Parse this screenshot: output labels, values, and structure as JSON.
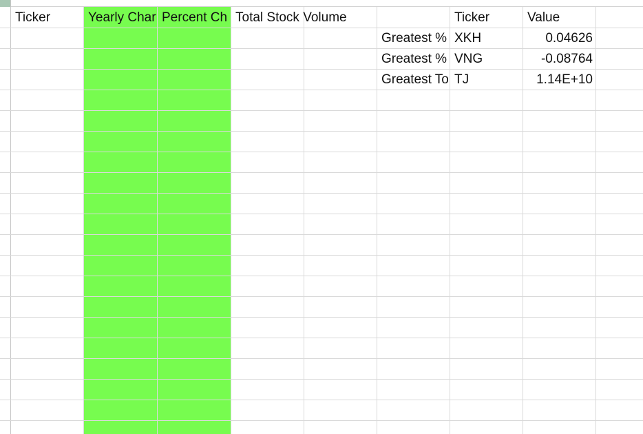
{
  "sheet": {
    "headers": {
      "ticker": "Ticker",
      "yearly_change": "Yearly Char",
      "percent_change": "Percent Ch",
      "total_stock_volume": "Total Stock Volume",
      "summary_ticker": "Ticker",
      "summary_value": "Value"
    },
    "summary": [
      {
        "label": "Greatest %",
        "ticker": "XKH",
        "value": "0.04626"
      },
      {
        "label": "Greatest %",
        "ticker": "VNG",
        "value": "-0.08764"
      },
      {
        "label": "Greatest To",
        "ticker": "TJ",
        "value": "1.14E+10"
      }
    ],
    "highlight_color": "#77fc4f"
  }
}
